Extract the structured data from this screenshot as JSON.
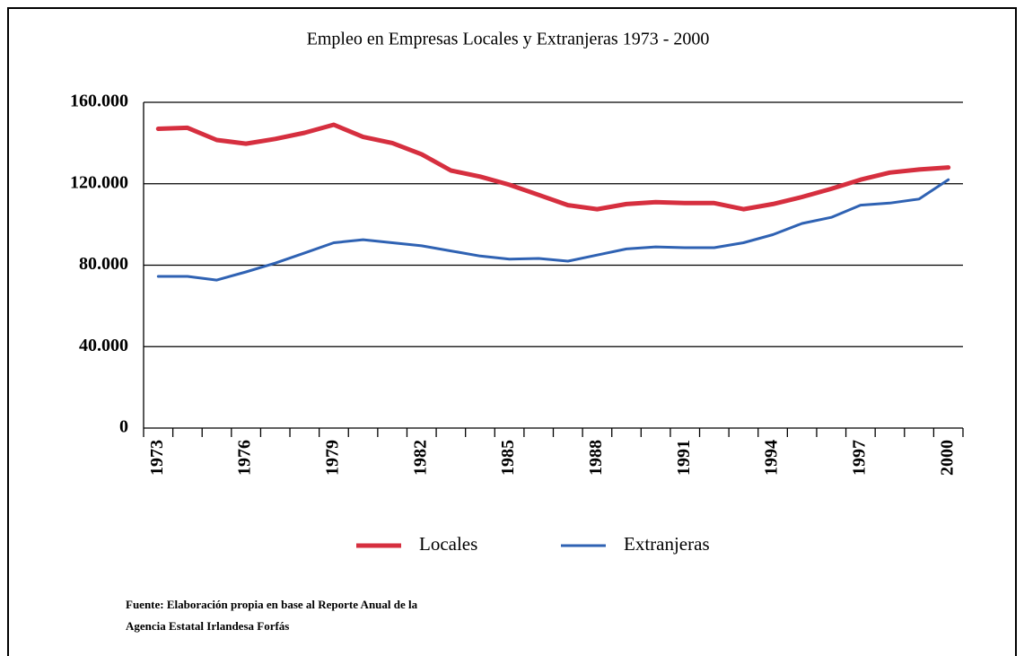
{
  "chart_data": {
    "type": "line",
    "title": "Empleo en Empresas Locales y Extranjeras 1973 - 2000",
    "categories": [
      "1973",
      null,
      null,
      "1976",
      null,
      null,
      "1979",
      null,
      null,
      "1982",
      null,
      null,
      "1985",
      null,
      null,
      "1988",
      null,
      null,
      "1991",
      null,
      null,
      "1994",
      null,
      null,
      "1997",
      null,
      null,
      "2000"
    ],
    "series": [
      {
        "name": "Locales",
        "color": "#d62f3f",
        "values": [
          147000,
          147500,
          141500,
          139700,
          142000,
          145000,
          149000,
          143000,
          140000,
          134500,
          126500,
          123500,
          119500,
          114500,
          109500,
          107500,
          110000,
          111000,
          110500,
          110500,
          107500,
          110000,
          113500,
          117500,
          122000,
          125500,
          127000,
          128000
        ]
      },
      {
        "name": "Extranjeras",
        "color": "#2f62b3",
        "values": [
          74500,
          74500,
          72700,
          76700,
          81000,
          86000,
          91000,
          92500,
          91000,
          89500,
          87000,
          84500,
          83000,
          83300,
          82000,
          85000,
          88000,
          89000,
          88600,
          88600,
          91000,
          95000,
          100500,
          103500,
          109500,
          110500,
          112500,
          122000
        ]
      }
    ],
    "ylim": [
      0,
      160000
    ],
    "yticks": [
      0,
      {
        "value": 40000,
        "label": "40.000"
      },
      {
        "value": 80000,
        "label": "80.000"
      },
      {
        "value": 120000,
        "label": "120.000"
      },
      {
        "value": 160000,
        "label": "160.000"
      }
    ],
    "grid": true,
    "legend": "bottom",
    "source": [
      "Fuente: Elaboración propia en base al Reporte Anual de la",
      "Agencia Estatal Irlandesa Forfás"
    ]
  }
}
